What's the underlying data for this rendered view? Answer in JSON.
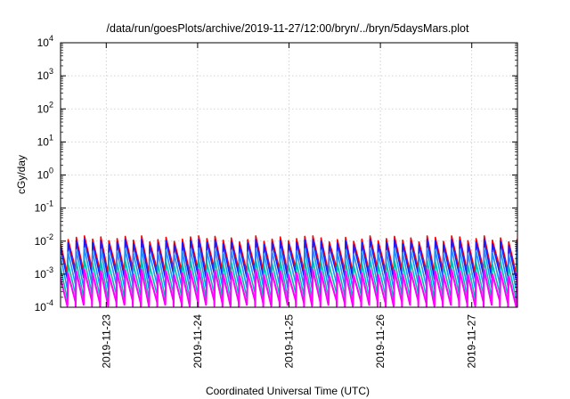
{
  "chart_data": {
    "type": "line",
    "title": "/data/run/goesPlots/archive/2019-11-27/12:00/bryn/../bryn/5daysMars.plot",
    "xlabel": "Coordinated Universal Time (UTC)",
    "ylabel": "cGy/day",
    "yscale": "log",
    "ylim": [
      0.0001,
      10000
    ],
    "y_tick_labels": [
      {
        "mantissa": "10",
        "exp": "-4"
      },
      {
        "mantissa": "10",
        "exp": "-3"
      },
      {
        "mantissa": "10",
        "exp": "-2"
      },
      {
        "mantissa": "10",
        "exp": "-1"
      },
      {
        "mantissa": "10",
        "exp": "0"
      },
      {
        "mantissa": "10",
        "exp": "1"
      },
      {
        "mantissa": "10",
        "exp": "2"
      },
      {
        "mantissa": "10",
        "exp": "3"
      },
      {
        "mantissa": "10",
        "exp": "4"
      }
    ],
    "xlim": [
      "2019-11-22T12:00",
      "2019-11-27T12:00"
    ],
    "x_ticks": [
      "2019-11-23",
      "2019-11-24",
      "2019-11-25",
      "2019-11-26",
      "2019-11-27"
    ],
    "grid": true,
    "legend": "none",
    "series": [
      {
        "color": "#ff0000",
        "peak": 0.0095,
        "trough": 0.0009
      },
      {
        "color": "#1a1aff",
        "peak": 0.0075,
        "trough": 0.0006
      },
      {
        "color": "#1e90ff",
        "peak": 0.004,
        "trough": 0.0003
      },
      {
        "color": "#00bfae",
        "peak": 0.0018,
        "trough": 0.00015
      },
      {
        "color": "#ff00ff",
        "peak": 0.0009,
        "trough": 9e-05
      }
    ]
  }
}
